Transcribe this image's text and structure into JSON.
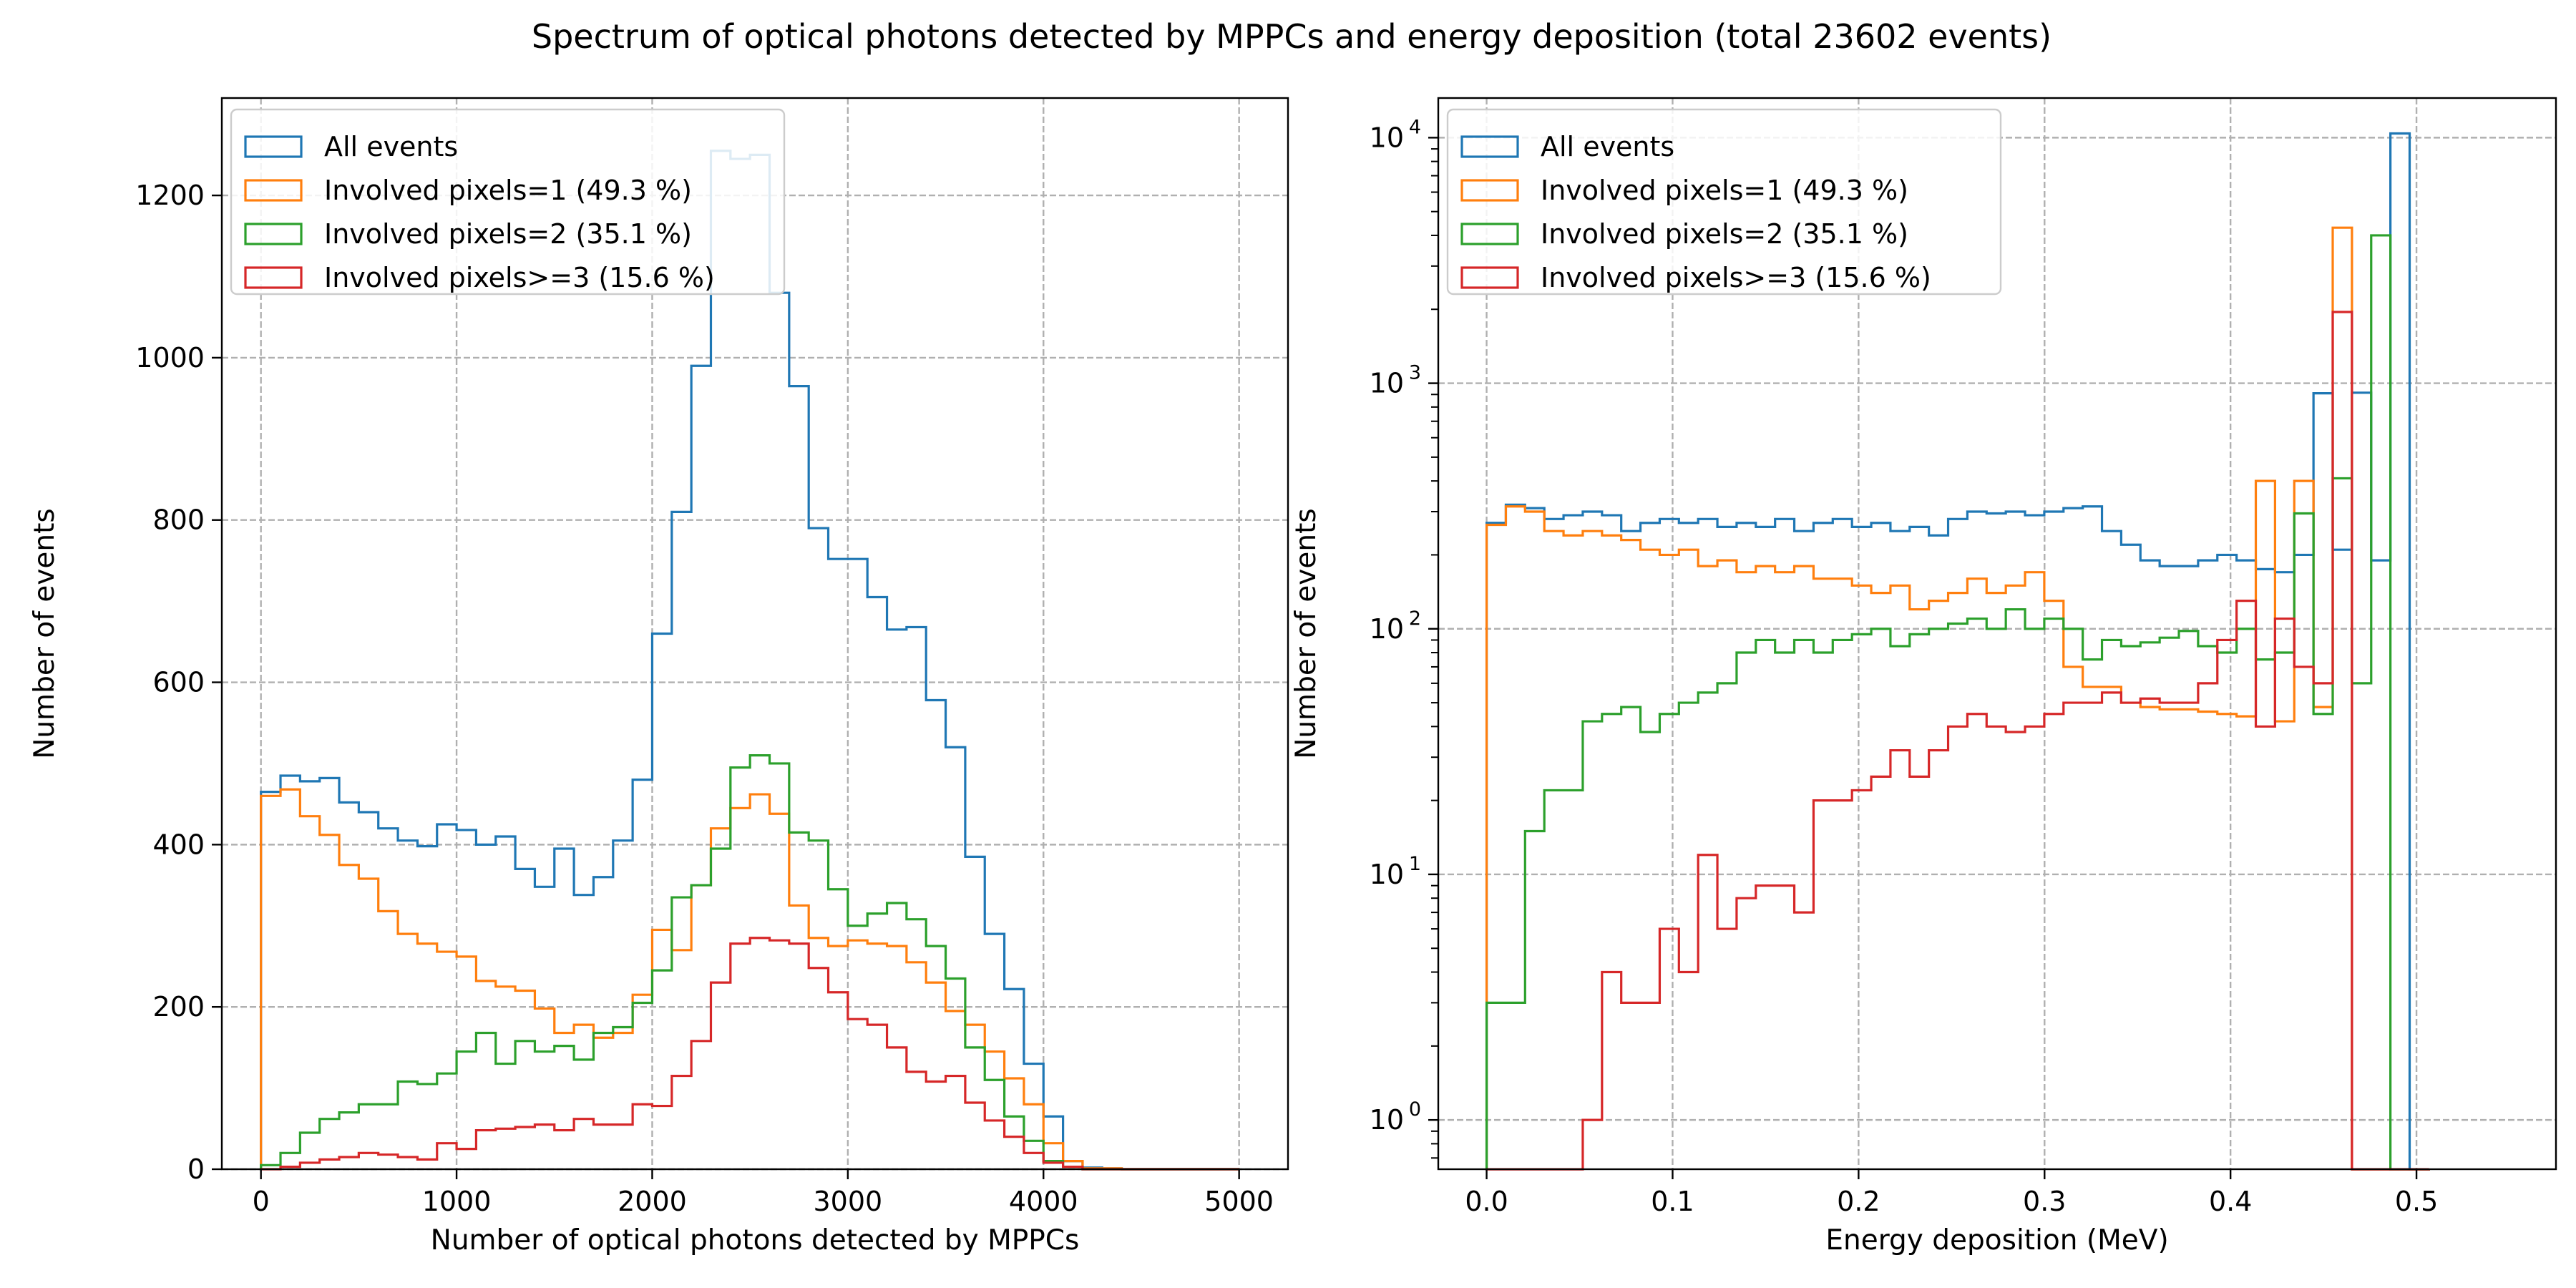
{
  "figure": {
    "title": "Spectrum of optical photons detected by MPPCs and energy deposition (total 23602 events)"
  },
  "colors": {
    "all": "#1f77b4",
    "pix1": "#ff7f0e",
    "pix2": "#2ca02c",
    "pix3": "#d62728",
    "grid": "#b0b0b0"
  },
  "legend": [
    "All events",
    "Involved pixels=1 (49.3 %)",
    "Involved pixels=2 (35.1 %)",
    "Involved pixels>=3 (15.6 %)"
  ],
  "chart_data": [
    {
      "type": "histogram-step",
      "xlabel": "Number of optical photons detected by MPPCs",
      "ylabel": "Number of events",
      "xlim": [
        -200,
        5250
      ],
      "ylim": [
        0,
        1320
      ],
      "xticks": [
        0,
        1000,
        2000,
        3000,
        4000,
        5000
      ],
      "yticks": [
        0,
        200,
        400,
        600,
        800,
        1000,
        1200
      ],
      "grid": true,
      "legend_loc": "upper left",
      "bin_start": 0,
      "bin_width": 100,
      "series": [
        {
          "name": "All events",
          "color_key": "all",
          "values": [
            465,
            485,
            478,
            482,
            452,
            440,
            420,
            405,
            398,
            425,
            418,
            400,
            410,
            370,
            348,
            395,
            338,
            360,
            405,
            480,
            660,
            810,
            990,
            1255,
            1245,
            1250,
            1080,
            965,
            790,
            752,
            752,
            705,
            665,
            668,
            578,
            520,
            385,
            290,
            222,
            130,
            65,
            10,
            2,
            1,
            0,
            0,
            0,
            0,
            0,
            0
          ]
        },
        {
          "name": "Involved pixels=1 (49.3 %)",
          "color_key": "pix1",
          "values": [
            460,
            468,
            435,
            412,
            375,
            358,
            318,
            290,
            278,
            268,
            262,
            232,
            225,
            220,
            198,
            168,
            178,
            162,
            168,
            215,
            295,
            270,
            350,
            420,
            445,
            462,
            438,
            325,
            285,
            275,
            282,
            278,
            275,
            255,
            230,
            195,
            178,
            145,
            112,
            80,
            32,
            10,
            1,
            1,
            0,
            0,
            0,
            0,
            0,
            0
          ]
        },
        {
          "name": "Involved pixels=2 (35.1 %)",
          "color_key": "pix2",
          "values": [
            5,
            20,
            45,
            62,
            70,
            80,
            80,
            108,
            105,
            118,
            145,
            168,
            130,
            158,
            145,
            152,
            135,
            168,
            175,
            205,
            245,
            335,
            350,
            395,
            495,
            510,
            500,
            415,
            405,
            345,
            300,
            315,
            328,
            308,
            275,
            235,
            150,
            110,
            65,
            35,
            10,
            3,
            0,
            0,
            0,
            0,
            0,
            0,
            0,
            0
          ]
        },
        {
          "name": "Involved pixels>=3 (15.6 %)",
          "color_key": "pix3",
          "values": [
            0,
            3,
            8,
            12,
            15,
            20,
            18,
            15,
            12,
            32,
            25,
            48,
            50,
            52,
            55,
            48,
            62,
            55,
            55,
            80,
            78,
            115,
            158,
            230,
            278,
            285,
            282,
            278,
            248,
            218,
            185,
            178,
            150,
            120,
            108,
            115,
            82,
            60,
            40,
            20,
            8,
            3,
            0,
            0,
            0,
            0,
            0,
            0,
            0,
            0
          ]
        }
      ]
    },
    {
      "type": "histogram-step",
      "scale_y": "log",
      "xlabel": "Energy deposition (MeV)",
      "ylabel": "Number of events",
      "xlim": [
        -0.026,
        0.575
      ],
      "ylim": [
        0.63,
        14500
      ],
      "xticks": [
        0.0,
        0.1,
        0.2,
        0.3,
        0.4,
        0.5
      ],
      "xticklabels": [
        "0.0",
        "0.1",
        "0.2",
        "0.3",
        "0.4",
        "0.5"
      ],
      "yticks": [
        1,
        10,
        100,
        1000,
        10000
      ],
      "yticklabels": [
        {
          "base": "10",
          "exp": "0"
        },
        {
          "base": "10",
          "exp": "1"
        },
        {
          "base": "10",
          "exp": "2"
        },
        {
          "base": "10",
          "exp": "3"
        },
        {
          "base": "10",
          "exp": "4"
        }
      ],
      "grid": true,
      "legend_loc": "upper left",
      "bin_start": 0,
      "bin_width": 0.01034,
      "series": [
        {
          "name": "All events",
          "color_key": "all",
          "values": [
            270,
            320,
            310,
            280,
            290,
            300,
            290,
            250,
            270,
            280,
            270,
            280,
            260,
            270,
            260,
            280,
            250,
            270,
            280,
            260,
            270,
            250,
            260,
            240,
            280,
            300,
            295,
            300,
            290,
            300,
            310,
            315,
            250,
            220,
            190,
            180,
            180,
            190,
            200,
            190,
            175,
            170,
            200,
            910,
            210,
            915,
            190,
            10400,
            0
          ]
        },
        {
          "name": "Involved pixels=1 (49.3 %)",
          "color_key": "pix1",
          "values": [
            265,
            315,
            300,
            250,
            240,
            250,
            240,
            230,
            210,
            200,
            210,
            180,
            190,
            170,
            180,
            170,
            180,
            160,
            160,
            150,
            140,
            150,
            120,
            130,
            140,
            160,
            140,
            150,
            170,
            130,
            70,
            58,
            58,
            50,
            48,
            47,
            47,
            46,
            45,
            44,
            400,
            42,
            400,
            48,
            4300,
            0,
            0,
            0,
            0
          ]
        },
        {
          "name": "Involved pixels=2 (35.1 %)",
          "color_key": "pix2",
          "values": [
            3,
            3,
            15,
            22,
            22,
            42,
            45,
            48,
            38,
            45,
            50,
            55,
            60,
            80,
            90,
            80,
            90,
            80,
            90,
            95,
            100,
            85,
            95,
            100,
            105,
            110,
            100,
            120,
            100,
            110,
            100,
            75,
            90,
            85,
            88,
            92,
            98,
            85,
            80,
            100,
            75,
            80,
            295,
            45,
            410,
            60,
            4000,
            0,
            0
          ]
        },
        {
          "name": "Involved pixels>=3 (15.6 %)",
          "color_key": "pix3",
          "values": [
            0,
            0,
            0,
            0,
            0,
            1,
            4,
            3,
            3,
            6,
            4,
            12,
            6,
            8,
            9,
            9,
            7,
            20,
            20,
            22,
            25,
            32,
            25,
            32,
            40,
            45,
            40,
            38,
            40,
            45,
            50,
            50,
            55,
            50,
            52,
            50,
            50,
            60,
            90,
            130,
            40,
            110,
            70,
            60,
            1950,
            0,
            0,
            0,
            0
          ]
        }
      ]
    }
  ]
}
